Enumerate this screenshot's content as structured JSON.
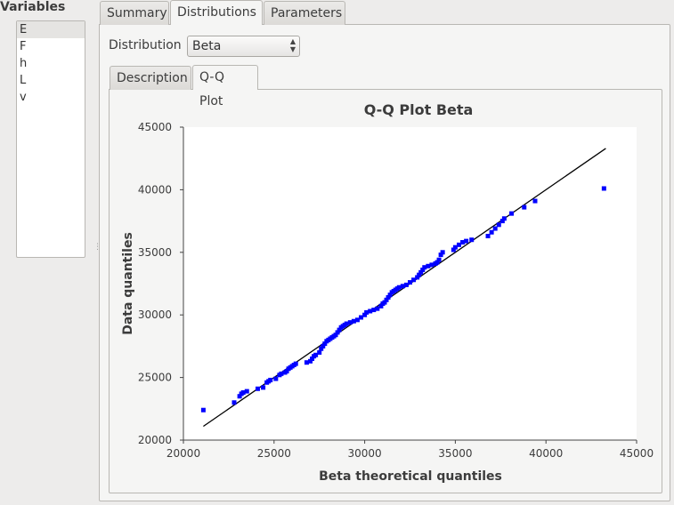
{
  "variables": {
    "title": "Variables",
    "items": [
      "E",
      "F",
      "h",
      "L",
      "v"
    ]
  },
  "tabs": [
    "Summary",
    "Distributions",
    "Parameters"
  ],
  "distribution": {
    "label": "Distribution",
    "selected": "Beta"
  },
  "subtabs": [
    "Description",
    "Q-Q Plot"
  ],
  "colors": {
    "points": "#0000ff",
    "line": "#000000",
    "plot_bg": "#ffffff"
  },
  "chart_data": {
    "type": "scatter",
    "title": "Q-Q Plot Beta",
    "xlabel": "Beta theoretical quantiles",
    "ylabel": "Data quantiles",
    "xlim": [
      20000,
      45000
    ],
    "ylim": [
      20000,
      45000
    ],
    "xticks": [
      20000,
      25000,
      30000,
      35000,
      40000,
      45000
    ],
    "yticks": [
      20000,
      25000,
      30000,
      35000,
      40000,
      45000
    ],
    "reference_line": [
      [
        21100,
        21100
      ],
      [
        43300,
        43300
      ]
    ],
    "series": [
      {
        "name": "Data",
        "points": [
          [
            21100,
            22400
          ],
          [
            22800,
            23000
          ],
          [
            23100,
            23500
          ],
          [
            23200,
            23700
          ],
          [
            23300,
            23800
          ],
          [
            23500,
            23900
          ],
          [
            24100,
            24100
          ],
          [
            24400,
            24200
          ],
          [
            24600,
            24600
          ],
          [
            24700,
            24700
          ],
          [
            24800,
            24800
          ],
          [
            25100,
            24900
          ],
          [
            25300,
            25200
          ],
          [
            25400,
            25300
          ],
          [
            25600,
            25400
          ],
          [
            25700,
            25500
          ],
          [
            25800,
            25700
          ],
          [
            25900,
            25800
          ],
          [
            26000,
            25900
          ],
          [
            26100,
            26000
          ],
          [
            26200,
            26100
          ],
          [
            26800,
            26200
          ],
          [
            27000,
            26300
          ],
          [
            27100,
            26500
          ],
          [
            27200,
            26700
          ],
          [
            27300,
            26800
          ],
          [
            27500,
            27000
          ],
          [
            27600,
            27300
          ],
          [
            27700,
            27500
          ],
          [
            27800,
            27700
          ],
          [
            27900,
            27900
          ],
          [
            28000,
            28000
          ],
          [
            28100,
            28100
          ],
          [
            28200,
            28200
          ],
          [
            28300,
            28300
          ],
          [
            28400,
            28400
          ],
          [
            28500,
            28600
          ],
          [
            28600,
            28800
          ],
          [
            28700,
            29000
          ],
          [
            28800,
            29100
          ],
          [
            28900,
            29200
          ],
          [
            29000,
            29300
          ],
          [
            29200,
            29400
          ],
          [
            29400,
            29500
          ],
          [
            29600,
            29600
          ],
          [
            29800,
            29800
          ],
          [
            30000,
            30000
          ],
          [
            30100,
            30200
          ],
          [
            30300,
            30300
          ],
          [
            30500,
            30400
          ],
          [
            30700,
            30500
          ],
          [
            30900,
            30700
          ],
          [
            31000,
            30900
          ],
          [
            31100,
            31000
          ],
          [
            31200,
            31200
          ],
          [
            31300,
            31400
          ],
          [
            31400,
            31600
          ],
          [
            31500,
            31800
          ],
          [
            31600,
            31900
          ],
          [
            31700,
            32000
          ],
          [
            31800,
            32100
          ],
          [
            31900,
            32200
          ],
          [
            32100,
            32300
          ],
          [
            32300,
            32400
          ],
          [
            32500,
            32600
          ],
          [
            32700,
            32800
          ],
          [
            32900,
            33000
          ],
          [
            33000,
            33200
          ],
          [
            33100,
            33400
          ],
          [
            33200,
            33600
          ],
          [
            33300,
            33800
          ],
          [
            33500,
            33900
          ],
          [
            33700,
            34000
          ],
          [
            33900,
            34100
          ],
          [
            34000,
            34200
          ],
          [
            34100,
            34400
          ],
          [
            34200,
            34800
          ],
          [
            34300,
            35000
          ],
          [
            34900,
            35200
          ],
          [
            35000,
            35400
          ],
          [
            35200,
            35600
          ],
          [
            35400,
            35800
          ],
          [
            35600,
            35900
          ],
          [
            35900,
            36000
          ],
          [
            36800,
            36300
          ],
          [
            37000,
            36600
          ],
          [
            37200,
            36900
          ],
          [
            37400,
            37200
          ],
          [
            37600,
            37500
          ],
          [
            37700,
            37700
          ],
          [
            38100,
            38100
          ],
          [
            38800,
            38600
          ],
          [
            39400,
            39100
          ],
          [
            43200,
            40100
          ]
        ]
      }
    ]
  }
}
